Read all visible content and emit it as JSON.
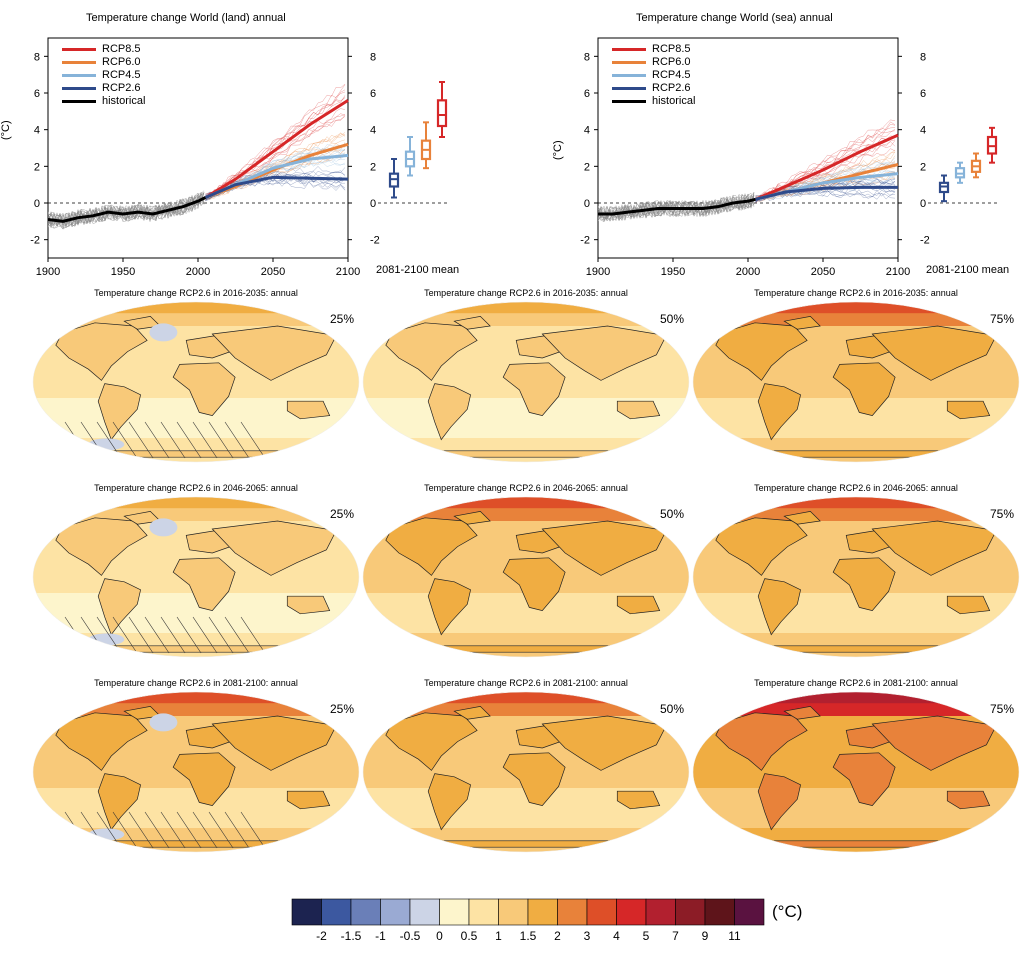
{
  "chart_data": [
    {
      "type": "line",
      "title": "Temperature change World (land) annual",
      "ylabel": "(°C)",
      "xlim": [
        1900,
        2100
      ],
      "ylim": [
        -3,
        9
      ],
      "x_ticks": [
        "1900",
        "1950",
        "2000",
        "2050",
        "2100"
      ],
      "y_ticks": [
        "-2",
        "0",
        "2",
        "4",
        "6",
        "8"
      ],
      "box_axis_label": "2081-2100 mean",
      "series": [
        {
          "name": "RCP8.5",
          "color": "#d62728",
          "x": [
            2005,
            2025,
            2050,
            2075,
            2100
          ],
          "values": [
            0.3,
            1.3,
            2.8,
            4.3,
            5.6
          ]
        },
        {
          "name": "RCP6.0",
          "color": "#e8823a",
          "x": [
            2005,
            2025,
            2050,
            2075,
            2100
          ],
          "values": [
            0.3,
            0.9,
            1.8,
            2.6,
            3.2
          ]
        },
        {
          "name": "RCP4.5",
          "color": "#86b3d9",
          "x": [
            2005,
            2025,
            2050,
            2075,
            2100
          ],
          "values": [
            0.3,
            1.0,
            1.9,
            2.4,
            2.6
          ]
        },
        {
          "name": "RCP2.6",
          "color": "#2e4a8a",
          "x": [
            2005,
            2025,
            2050,
            2075,
            2100
          ],
          "values": [
            0.3,
            1.0,
            1.4,
            1.35,
            1.3
          ]
        },
        {
          "name": "historical",
          "color": "#000000",
          "x": [
            1900,
            1910,
            1920,
            1930,
            1940,
            1950,
            1960,
            1970,
            1980,
            1990,
            2000,
            2005
          ],
          "values": [
            -0.9,
            -1.0,
            -0.8,
            -0.7,
            -0.5,
            -0.6,
            -0.5,
            -0.6,
            -0.4,
            -0.2,
            0.1,
            0.3
          ]
        }
      ],
      "boxes": [
        {
          "name": "RCP2.6",
          "color": "#2e4a8a",
          "min": 0.3,
          "q1": 0.9,
          "median": 1.3,
          "q3": 1.6,
          "max": 2.4
        },
        {
          "name": "RCP4.5",
          "color": "#86b3d9",
          "min": 1.5,
          "q1": 2.0,
          "median": 2.4,
          "q3": 2.8,
          "max": 3.6
        },
        {
          "name": "RCP6.0",
          "color": "#e8823a",
          "min": 1.9,
          "q1": 2.4,
          "median": 2.9,
          "q3": 3.4,
          "max": 4.4
        },
        {
          "name": "RCP8.5",
          "color": "#d62728",
          "min": 3.6,
          "q1": 4.2,
          "median": 4.8,
          "q3": 5.6,
          "max": 6.6
        }
      ]
    },
    {
      "type": "line",
      "title": "Temperature change World (sea) annual",
      "ylabel": "(°C)",
      "xlim": [
        1900,
        2100
      ],
      "ylim": [
        -3,
        9
      ],
      "x_ticks": [
        "1900",
        "1950",
        "2000",
        "2050",
        "2100"
      ],
      "y_ticks": [
        "-2",
        "0",
        "2",
        "4",
        "6",
        "8"
      ],
      "box_axis_label": "2081-2100 mean",
      "series": [
        {
          "name": "RCP8.5",
          "color": "#d62728",
          "x": [
            2005,
            2025,
            2050,
            2075,
            2100
          ],
          "values": [
            0.2,
            0.9,
            1.8,
            2.8,
            3.7
          ]
        },
        {
          "name": "RCP6.0",
          "color": "#e8823a",
          "x": [
            2005,
            2025,
            2050,
            2075,
            2100
          ],
          "values": [
            0.2,
            0.6,
            1.1,
            1.6,
            2.1
          ]
        },
        {
          "name": "RCP4.5",
          "color": "#86b3d9",
          "x": [
            2005,
            2025,
            2050,
            2075,
            2100
          ],
          "values": [
            0.2,
            0.6,
            1.1,
            1.4,
            1.6
          ]
        },
        {
          "name": "RCP2.6",
          "color": "#2e4a8a",
          "x": [
            2005,
            2025,
            2050,
            2075,
            2100
          ],
          "values": [
            0.2,
            0.6,
            0.8,
            0.85,
            0.85
          ]
        },
        {
          "name": "historical",
          "color": "#000000",
          "x": [
            1900,
            1910,
            1920,
            1930,
            1940,
            1950,
            1960,
            1970,
            1980,
            1990,
            2000,
            2005
          ],
          "values": [
            -0.6,
            -0.6,
            -0.5,
            -0.4,
            -0.3,
            -0.3,
            -0.3,
            -0.3,
            -0.2,
            0.0,
            0.1,
            0.2
          ]
        }
      ],
      "boxes": [
        {
          "name": "RCP2.6",
          "color": "#2e4a8a",
          "min": 0.1,
          "q1": 0.6,
          "median": 0.9,
          "q3": 1.1,
          "max": 1.5
        },
        {
          "name": "RCP4.5",
          "color": "#86b3d9",
          "min": 1.1,
          "q1": 1.4,
          "median": 1.6,
          "q3": 1.9,
          "max": 2.2
        },
        {
          "name": "RCP6.0",
          "color": "#e8823a",
          "min": 1.4,
          "q1": 1.7,
          "median": 2.0,
          "q3": 2.3,
          "max": 2.7
        },
        {
          "name": "RCP8.5",
          "color": "#d62728",
          "min": 2.2,
          "q1": 2.7,
          "median": 3.1,
          "q3": 3.6,
          "max": 4.1
        }
      ]
    }
  ],
  "maps": {
    "rows": [
      {
        "title": "Temperature change RCP2.6 in 2016-2035: annual",
        "level": 0
      },
      {
        "title": "Temperature change RCP2.6 in 2046-2065: annual",
        "level": 1
      },
      {
        "title": "Temperature change RCP2.6 in 2081-2100: annual",
        "level": 2
      }
    ],
    "percentiles": [
      "25%",
      "50%",
      "75%"
    ]
  },
  "colorbar": {
    "unit": "(°C)",
    "colors": [
      "#1c2350",
      "#3c58a0",
      "#6a7fb8",
      "#9aaad3",
      "#ccd4e6",
      "#fdf5cc",
      "#fde3a4",
      "#f8c979",
      "#f0ad42",
      "#e8823a",
      "#de4f28",
      "#d62728",
      "#b2202f",
      "#8c1c26",
      "#5e141a",
      "#5a1240"
    ],
    "labels": [
      "-2",
      "-1.5",
      "-1",
      "-0.5",
      "0",
      "0.5",
      "1",
      "1.5",
      "2",
      "3",
      "4",
      "5",
      "7",
      "9",
      "11"
    ]
  }
}
